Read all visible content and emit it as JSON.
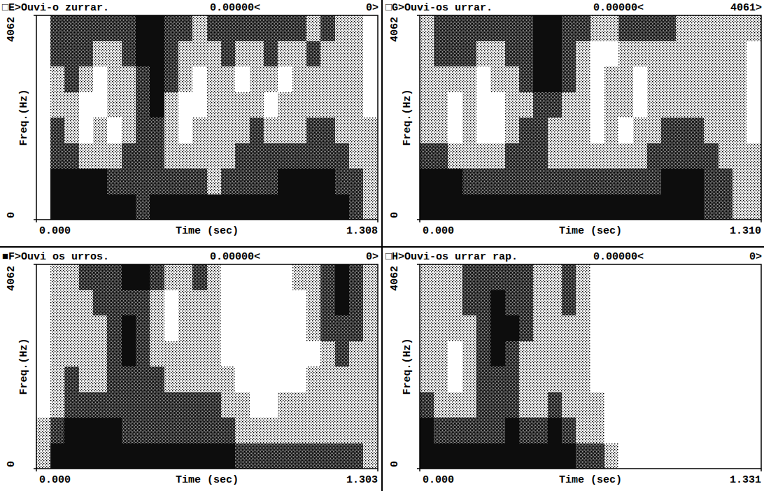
{
  "chart_data": [
    {
      "type": "spectrogram",
      "title": "□E>Ouvi-o zurrar.",
      "annotations": [
        "0.00000<",
        "0>"
      ],
      "x_label": "Time (sec)",
      "y_label": "Freq.(Hz)",
      "xlim": [
        0,
        1.308
      ],
      "xticks": [
        {
          "value": 0,
          "label": "0.000"
        },
        {
          "value": 1.308,
          "label": "1.308"
        }
      ],
      "ylim": [
        0,
        4062
      ],
      "yticks": [
        0,
        4062
      ],
      "cells": [
        [
          0,
          3,
          3,
          3,
          3,
          3,
          3,
          2,
          3,
          3,
          3,
          3,
          3,
          3,
          3,
          3,
          3,
          3,
          3,
          3,
          3,
          3,
          2,
          1
        ],
        [
          0,
          3,
          3,
          3,
          3,
          2,
          2,
          2,
          2,
          2,
          2,
          2,
          1,
          2,
          2,
          2,
          2,
          3,
          3,
          3,
          3,
          2,
          2,
          1
        ],
        [
          0,
          2,
          2,
          1,
          1,
          1,
          2,
          2,
          2,
          1,
          1,
          1,
          1,
          1,
          2,
          2,
          2,
          2,
          2,
          2,
          2,
          2,
          1,
          1
        ],
        [
          0,
          2,
          1,
          0,
          1,
          0,
          1,
          2,
          2,
          1,
          0,
          1,
          1,
          1,
          1,
          2,
          1,
          1,
          1,
          2,
          2,
          1,
          1,
          1
        ],
        [
          0,
          1,
          1,
          0,
          0,
          1,
          1,
          2,
          3,
          1,
          0,
          0,
          1,
          1,
          1,
          1,
          0,
          1,
          1,
          1,
          1,
          1,
          1,
          0
        ],
        [
          0,
          1,
          2,
          1,
          0,
          1,
          1,
          2,
          3,
          2,
          1,
          0,
          1,
          1,
          0,
          1,
          1,
          0,
          1,
          1,
          1,
          1,
          1,
          0
        ],
        [
          0,
          2,
          2,
          2,
          1,
          1,
          2,
          3,
          3,
          2,
          1,
          1,
          1,
          2,
          1,
          1,
          2,
          1,
          1,
          2,
          1,
          1,
          1,
          0
        ],
        [
          0,
          2,
          2,
          2,
          2,
          2,
          2,
          3,
          3,
          2,
          2,
          1,
          2,
          2,
          2,
          2,
          2,
          2,
          2,
          1,
          2,
          1,
          1,
          0
        ]
      ]
    },
    {
      "type": "spectrogram",
      "title": "□G>Ouvi-os urrar.",
      "annotations": [
        "0.00000<",
        "4061>"
      ],
      "x_label": "Time (sec)",
      "y_label": "Freq.(Hz)",
      "xlim": [
        0,
        1.31
      ],
      "xticks": [
        {
          "value": 0,
          "label": "0.000"
        },
        {
          "value": 1.31,
          "label": "1.310"
        }
      ],
      "ylim": [
        0,
        4062
      ],
      "yticks": [
        0,
        4062
      ],
      "cells": [
        [
          3,
          3,
          3,
          3,
          3,
          3,
          3,
          3,
          3,
          3,
          3,
          3,
          3,
          3,
          3,
          3,
          3,
          3,
          3,
          3,
          2,
          2,
          1,
          1
        ],
        [
          3,
          3,
          3,
          2,
          2,
          2,
          2,
          2,
          2,
          2,
          2,
          2,
          2,
          2,
          2,
          2,
          2,
          3,
          3,
          3,
          2,
          2,
          1,
          1
        ],
        [
          2,
          2,
          1,
          1,
          1,
          1,
          2,
          2,
          2,
          1,
          1,
          1,
          1,
          1,
          1,
          1,
          2,
          2,
          2,
          2,
          2,
          1,
          1,
          1
        ],
        [
          1,
          1,
          0,
          1,
          0,
          0,
          1,
          2,
          2,
          1,
          1,
          1,
          0,
          1,
          0,
          1,
          1,
          2,
          2,
          2,
          1,
          1,
          1,
          0
        ],
        [
          1,
          1,
          0,
          1,
          0,
          0,
          1,
          1,
          2,
          2,
          1,
          1,
          0,
          1,
          1,
          0,
          1,
          1,
          1,
          1,
          1,
          1,
          1,
          0
        ],
        [
          1,
          1,
          1,
          1,
          0,
          1,
          1,
          2,
          3,
          3,
          2,
          1,
          0,
          1,
          1,
          0,
          1,
          1,
          1,
          1,
          1,
          1,
          1,
          0
        ],
        [
          1,
          2,
          2,
          2,
          1,
          1,
          2,
          2,
          3,
          3,
          2,
          1,
          0,
          0,
          1,
          1,
          1,
          1,
          1,
          1,
          1,
          1,
          1,
          0
        ],
        [
          1,
          2,
          2,
          2,
          2,
          2,
          2,
          2,
          3,
          3,
          2,
          2,
          1,
          1,
          2,
          2,
          2,
          2,
          1,
          1,
          1,
          1,
          1,
          1
        ]
      ]
    },
    {
      "type": "spectrogram",
      "title": "■F>Ouvi os urros.",
      "annotations": [
        "0.00000<",
        "0>"
      ],
      "x_label": "Time (sec)",
      "y_label": "Freq.(Hz)",
      "xlim": [
        0,
        1.303
      ],
      "xticks": [
        {
          "value": 0,
          "label": "0.000"
        },
        {
          "value": 1.303,
          "label": "1.303"
        }
      ],
      "ylim": [
        0,
        4062
      ],
      "yticks": [
        0,
        4062
      ],
      "cells": [
        [
          1,
          3,
          3,
          3,
          3,
          3,
          3,
          3,
          3,
          3,
          3,
          3,
          3,
          3,
          2,
          2,
          2,
          2,
          2,
          2,
          2,
          2,
          2,
          1
        ],
        [
          1,
          2,
          3,
          3,
          3,
          3,
          2,
          2,
          2,
          2,
          2,
          2,
          2,
          2,
          1,
          1,
          1,
          1,
          1,
          1,
          1,
          1,
          1,
          1
        ],
        [
          0,
          1,
          2,
          2,
          2,
          2,
          2,
          2,
          2,
          2,
          2,
          2,
          2,
          1,
          1,
          0,
          0,
          1,
          1,
          1,
          1,
          1,
          1,
          1
        ],
        [
          0,
          1,
          2,
          1,
          1,
          2,
          2,
          2,
          2,
          1,
          1,
          1,
          1,
          1,
          0,
          0,
          0,
          0,
          0,
          1,
          1,
          1,
          1,
          1
        ],
        [
          0,
          1,
          1,
          1,
          1,
          2,
          3,
          2,
          1,
          1,
          1,
          1,
          1,
          0,
          0,
          0,
          0,
          0,
          0,
          0,
          1,
          2,
          1,
          1
        ],
        [
          0,
          1,
          1,
          1,
          1,
          2,
          3,
          2,
          1,
          0,
          1,
          1,
          1,
          0,
          0,
          0,
          0,
          0,
          0,
          1,
          2,
          2,
          2,
          1
        ],
        [
          0,
          1,
          1,
          1,
          2,
          2,
          2,
          2,
          1,
          0,
          1,
          1,
          1,
          0,
          0,
          0,
          0,
          0,
          0,
          1,
          2,
          3,
          2,
          1
        ],
        [
          0,
          1,
          1,
          2,
          2,
          2,
          3,
          3,
          2,
          1,
          1,
          2,
          1,
          0,
          0,
          0,
          0,
          0,
          1,
          1,
          2,
          3,
          2,
          1
        ]
      ]
    },
    {
      "type": "spectrogram",
      "title": "□H>Ouvi-os urrar rap.",
      "annotations": [
        "0.00000<",
        "0>"
      ],
      "x_label": "Time (sec)",
      "y_label": "Freq.(Hz)",
      "xlim": [
        0,
        1.331
      ],
      "xticks": [
        {
          "value": 0,
          "label": "0.000"
        },
        {
          "value": 1.331,
          "label": "1.331"
        }
      ],
      "ylim": [
        0,
        4062
      ],
      "yticks": [
        0,
        4062
      ],
      "cells": [
        [
          3,
          3,
          3,
          3,
          3,
          3,
          3,
          3,
          3,
          3,
          3,
          2,
          2,
          1,
          0,
          0,
          0,
          0,
          0,
          0,
          0,
          0,
          0,
          0
        ],
        [
          3,
          2,
          2,
          2,
          2,
          2,
          3,
          2,
          2,
          3,
          2,
          1,
          1,
          0,
          0,
          0,
          0,
          0,
          0,
          0,
          0,
          0,
          0,
          0
        ],
        [
          2,
          1,
          1,
          1,
          2,
          2,
          2,
          1,
          1,
          2,
          1,
          1,
          1,
          0,
          0,
          0,
          0,
          0,
          0,
          0,
          0,
          0,
          0,
          0
        ],
        [
          1,
          1,
          0,
          1,
          2,
          2,
          2,
          1,
          1,
          1,
          1,
          1,
          0,
          0,
          0,
          0,
          0,
          0,
          0,
          0,
          0,
          0,
          0,
          0
        ],
        [
          1,
          1,
          0,
          1,
          2,
          3,
          2,
          1,
          1,
          1,
          1,
          1,
          0,
          0,
          0,
          0,
          0,
          0,
          0,
          0,
          0,
          0,
          0,
          0
        ],
        [
          1,
          1,
          1,
          1,
          2,
          3,
          3,
          2,
          1,
          1,
          1,
          1,
          0,
          0,
          0,
          0,
          0,
          0,
          0,
          0,
          0,
          0,
          0,
          0
        ],
        [
          1,
          1,
          1,
          2,
          2,
          3,
          2,
          2,
          1,
          1,
          2,
          1,
          0,
          0,
          0,
          0,
          0,
          0,
          0,
          0,
          0,
          0,
          0,
          0
        ],
        [
          1,
          1,
          1,
          2,
          2,
          2,
          2,
          2,
          1,
          1,
          2,
          1,
          0,
          0,
          0,
          0,
          0,
          0,
          0,
          0,
          0,
          0,
          0,
          0
        ]
      ]
    }
  ]
}
